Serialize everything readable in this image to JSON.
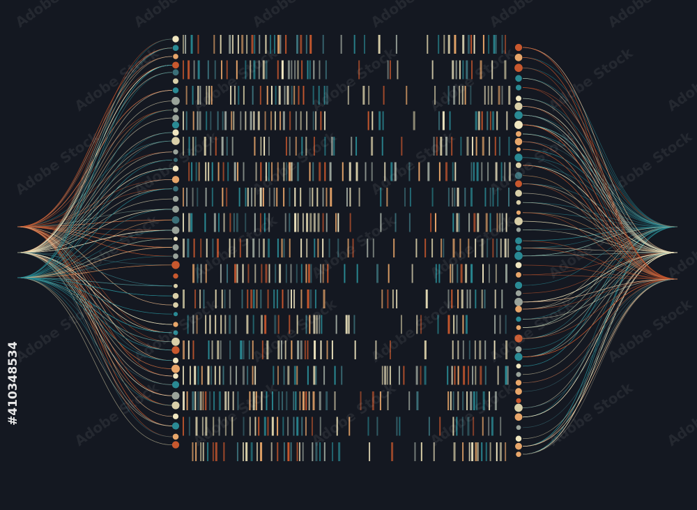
{
  "watermark": "Adobe Stock",
  "image_id": "#410348534"
}
